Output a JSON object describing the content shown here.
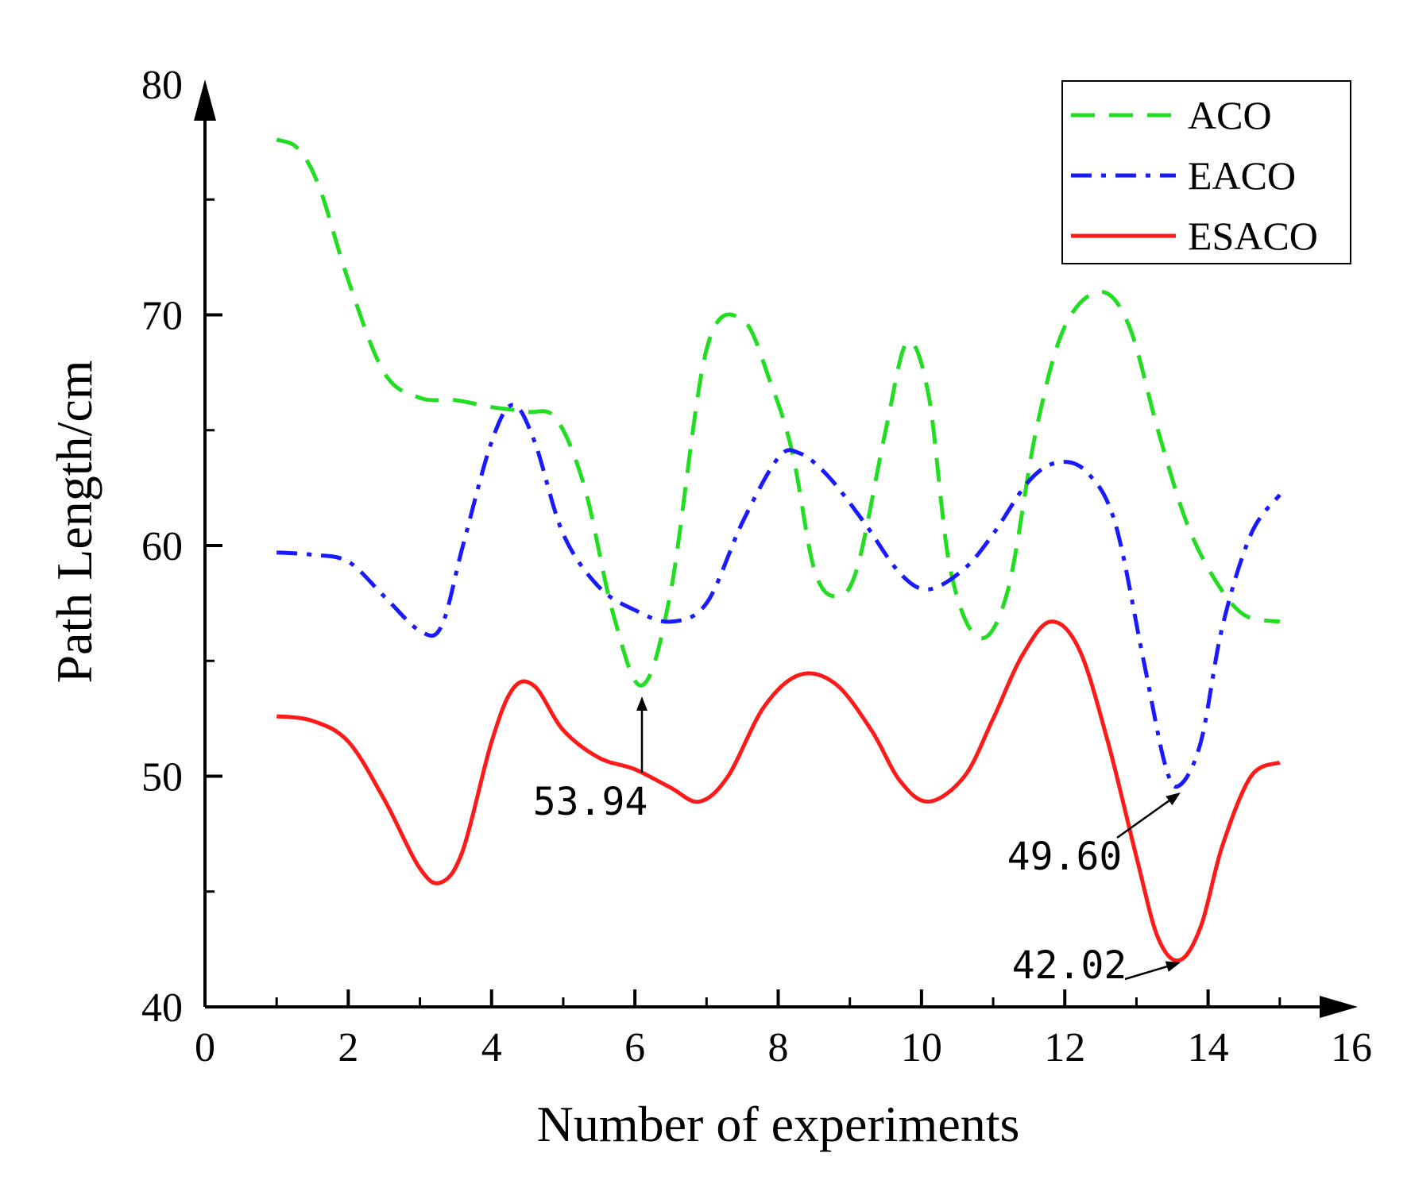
{
  "chart_data": {
    "type": "line",
    "xlabel": "Number of experiments",
    "ylabel": "Path Length/cm",
    "xlim": [
      0,
      16
    ],
    "ylim": [
      40,
      80
    ],
    "xticks": [
      "0",
      "2",
      "4",
      "6",
      "8",
      "10",
      "12",
      "14",
      "16"
    ],
    "yticks": [
      "40",
      "50",
      "60",
      "70",
      "80"
    ],
    "grid": false,
    "legend_position": "top-right",
    "series": [
      {
        "name": "ACO",
        "color": "#22dd22",
        "style": "dashed",
        "x": [
          1,
          1.3,
          1.6,
          2,
          2.5,
          3,
          3.5,
          4,
          4.5,
          4.9,
          5.3,
          5.7,
          6.1,
          6.5,
          7,
          7.5,
          7.9,
          8.2,
          8.5,
          8.8,
          9.1,
          9.5,
          9.8,
          10.1,
          10.4,
          10.8,
          11.2,
          11.6,
          12,
          12.5,
          12.9,
          13.3,
          13.7,
          14.1,
          14.5,
          15
        ],
        "y": [
          77.6,
          77.2,
          75.5,
          71.5,
          67.5,
          66.4,
          66.3,
          66,
          65.8,
          65.5,
          62.5,
          57,
          53.94,
          58,
          68.5,
          69.8,
          67,
          64,
          59,
          57.8,
          59,
          65,
          68.8,
          66.5,
          59,
          56,
          58,
          65,
          69.5,
          71,
          69.5,
          65,
          61,
          58.5,
          57,
          56.7
        ]
      },
      {
        "name": "EACO",
        "color": "#1a1aff",
        "style": "dashdot",
        "x": [
          1,
          1.5,
          2,
          2.5,
          3,
          3.3,
          3.6,
          4,
          4.3,
          4.6,
          5,
          5.5,
          6,
          6.5,
          7,
          7.5,
          8,
          8.3,
          8.7,
          9.2,
          9.7,
          10.1,
          10.6,
          11,
          11.5,
          11.9,
          12.3,
          12.7,
          13.1,
          13.4,
          13.6,
          13.9,
          14.2,
          14.6,
          15
        ],
        "y": [
          59.7,
          59.6,
          59.3,
          57.8,
          56.3,
          56.5,
          60,
          64.5,
          66.1,
          64.5,
          60.5,
          58.2,
          57.2,
          56.7,
          57.5,
          61,
          63.8,
          64,
          63,
          61,
          58.8,
          58.1,
          59,
          60.5,
          62.8,
          63.6,
          63.2,
          61,
          55,
          50.5,
          49.6,
          51.5,
          56.5,
          60.5,
          62.2
        ]
      },
      {
        "name": "ESACO",
        "color": "#ff1a1a",
        "style": "solid",
        "x": [
          1,
          1.5,
          2,
          2.5,
          3,
          3.3,
          3.6,
          4,
          4.3,
          4.6,
          5,
          5.5,
          6,
          6.5,
          6.9,
          7.3,
          7.8,
          8.3,
          8.8,
          9.3,
          9.7,
          10.1,
          10.6,
          11,
          11.4,
          11.8,
          12.2,
          12.6,
          13,
          13.3,
          13.6,
          13.9,
          14.2,
          14.6,
          15
        ],
        "y": [
          52.6,
          52.4,
          51.5,
          49,
          46,
          45.4,
          46.8,
          51.5,
          53.8,
          53.9,
          52,
          50.8,
          50.3,
          49.5,
          48.9,
          50,
          53,
          54.4,
          54,
          52,
          49.8,
          48.9,
          50,
          52.5,
          55.2,
          56.7,
          55.5,
          51.5,
          46.5,
          43,
          42.02,
          43.5,
          47,
          50,
          50.6
        ]
      }
    ],
    "annotations": [
      {
        "text": "53.94",
        "series": "ACO",
        "x": 6.1,
        "y": 53.94
      },
      {
        "text": "49.60",
        "series": "EACO",
        "x": 13.6,
        "y": 49.6
      },
      {
        "text": "42.02",
        "series": "ESACO",
        "x": 13.6,
        "y": 42.02
      }
    ]
  }
}
